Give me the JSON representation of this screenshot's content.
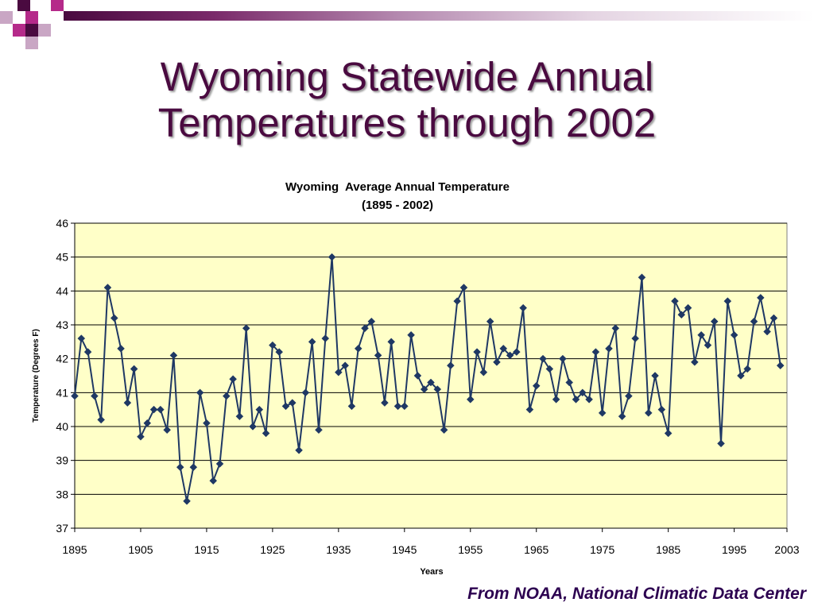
{
  "slide": {
    "title_line1": "Wyoming Statewide Annual",
    "title_line2": "Temperatures through 2002",
    "source": "From NOAA, National Climatic Data Center"
  },
  "colors": {
    "title": "#4a0a40",
    "plot_bg": "#ffffc8",
    "series": "#1f3864",
    "source": "#2c0050"
  },
  "chart_data": {
    "type": "line",
    "title": "Wyoming  Average Annual Temperature",
    "subtitle": "(1895 - 2002)",
    "xlabel": "Years",
    "ylabel": "Temperature (Degrees F)",
    "xlim": [
      1895,
      2003
    ],
    "ylim": [
      37,
      46
    ],
    "x_ticks": [
      "1895",
      "1905",
      "1915",
      "1925",
      "1935",
      "1945",
      "1955",
      "1965",
      "1975",
      "1985",
      "1995",
      "2003"
    ],
    "y_ticks": [
      "37",
      "38",
      "39",
      "40",
      "41",
      "42",
      "43",
      "44",
      "45",
      "46"
    ],
    "grid": true,
    "marker": "diamond",
    "x": [
      1895,
      1896,
      1897,
      1898,
      1899,
      1900,
      1901,
      1902,
      1903,
      1904,
      1905,
      1906,
      1907,
      1908,
      1909,
      1910,
      1911,
      1912,
      1913,
      1914,
      1915,
      1916,
      1917,
      1918,
      1919,
      1920,
      1921,
      1922,
      1923,
      1924,
      1925,
      1926,
      1927,
      1928,
      1929,
      1930,
      1931,
      1932,
      1933,
      1934,
      1935,
      1936,
      1937,
      1938,
      1939,
      1940,
      1941,
      1942,
      1943,
      1944,
      1945,
      1946,
      1947,
      1948,
      1949,
      1950,
      1951,
      1952,
      1953,
      1954,
      1955,
      1956,
      1957,
      1958,
      1959,
      1960,
      1961,
      1962,
      1963,
      1964,
      1965,
      1966,
      1967,
      1968,
      1969,
      1970,
      1971,
      1972,
      1973,
      1974,
      1975,
      1976,
      1977,
      1978,
      1979,
      1980,
      1981,
      1982,
      1983,
      1984,
      1985,
      1986,
      1987,
      1988,
      1989,
      1990,
      1991,
      1992,
      1993,
      1994,
      1995,
      1996,
      1997,
      1998,
      1999,
      2000,
      2001,
      2002
    ],
    "values": [
      40.9,
      42.6,
      42.2,
      40.9,
      40.2,
      44.1,
      43.2,
      42.3,
      40.7,
      41.7,
      39.7,
      40.1,
      40.5,
      40.5,
      39.9,
      42.1,
      38.8,
      37.8,
      38.8,
      41.0,
      40.1,
      38.4,
      38.9,
      40.9,
      41.4,
      40.3,
      42.9,
      40.0,
      40.5,
      39.8,
      42.4,
      42.2,
      40.6,
      40.7,
      39.3,
      41.0,
      42.5,
      39.9,
      42.6,
      45.0,
      41.6,
      41.8,
      40.6,
      42.3,
      42.9,
      43.1,
      42.1,
      40.7,
      42.5,
      40.6,
      40.6,
      42.7,
      41.5,
      41.1,
      41.3,
      41.1,
      39.9,
      41.8,
      43.7,
      44.1,
      40.8,
      42.2,
      41.6,
      43.1,
      41.9,
      42.3,
      42.1,
      42.2,
      43.5,
      40.5,
      41.2,
      42.0,
      41.7,
      40.8,
      42.0,
      41.3,
      40.8,
      41.0,
      40.8,
      42.2,
      40.4,
      42.3,
      42.9,
      40.3,
      40.9,
      42.6,
      44.4,
      40.4,
      41.5,
      40.5,
      39.8,
      43.7,
      43.3,
      43.5,
      41.9,
      42.7,
      42.4,
      43.1,
      39.5,
      43.7,
      42.7,
      41.5,
      41.7,
      43.1,
      43.8,
      42.8,
      43.2,
      41.8
    ]
  }
}
